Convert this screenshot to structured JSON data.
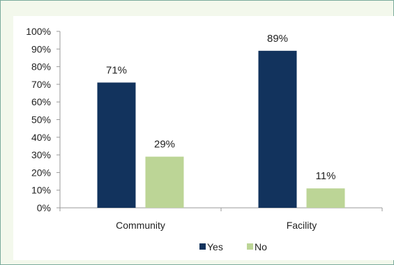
{
  "chart_data": {
    "type": "bar",
    "categories": [
      "Community",
      "Facility"
    ],
    "series": [
      {
        "name": "Yes",
        "values": [
          71,
          89
        ],
        "labels": [
          "71%",
          "89%"
        ],
        "color": "#12335d"
      },
      {
        "name": "No",
        "values": [
          29,
          11
        ],
        "labels": [
          "29%",
          "11%"
        ],
        "color": "#bcd596"
      }
    ],
    "ylim": [
      0,
      100
    ],
    "yticks": [
      "0%",
      "10%",
      "20%",
      "30%",
      "40%",
      "50%",
      "60%",
      "70%",
      "80%",
      "90%",
      "100%"
    ],
    "legend": "bottom",
    "grid": false,
    "title": "",
    "xlabel": "",
    "ylabel": ""
  }
}
